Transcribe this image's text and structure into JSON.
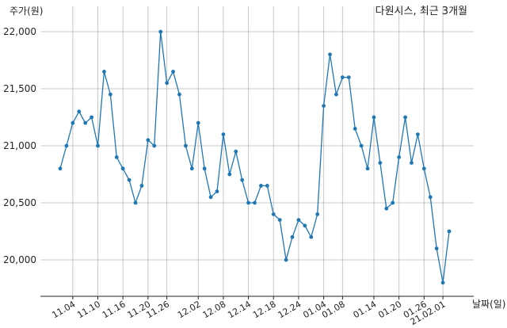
{
  "chart_data": {
    "type": "line",
    "title": "다원시스, 최근 3개월",
    "ylabel": "주가(원)",
    "xlabel": "날짜(일)",
    "ylim": [
      19700,
      22200
    ],
    "yticks": [
      20000,
      20500,
      21000,
      21500,
      22000
    ],
    "yticklabels": [
      "20,000",
      "20,500",
      "21,000",
      "21,500",
      "22,000"
    ],
    "xticklabels": [
      "11.04",
      "11.10",
      "11.16",
      "11.20",
      "11.26",
      "12.02",
      "12.08",
      "12.14",
      "12.18",
      "12.24",
      "01.04",
      "01.08",
      "01.14",
      "01.20",
      "01.26",
      "21.02.01"
    ],
    "xtick_index": [
      2,
      6,
      10,
      14,
      17,
      22,
      26,
      30,
      34,
      38,
      42,
      45,
      50,
      54,
      58,
      61
    ],
    "grid": true,
    "line_color": "#1f77b4",
    "series": [
      {
        "values": [
          20800,
          21000,
          21200,
          21300,
          21200,
          21250,
          21000,
          21650,
          21450,
          20900,
          20800,
          20700,
          20500,
          20650,
          21050,
          21000,
          22000,
          21550,
          21650,
          21450,
          21000,
          20800,
          21200,
          20800,
          20550,
          20600,
          21100,
          20750,
          20950,
          20700,
          20500,
          20500,
          20650,
          20650,
          20400,
          20350,
          20000,
          20200,
          20350,
          20300,
          20200,
          20400,
          21350,
          21800,
          21450,
          21600,
          21600,
          21150,
          21000,
          20800,
          21250,
          20850,
          20450,
          20500,
          20900,
          21250,
          20850,
          21100,
          20800,
          20550,
          20100,
          19800,
          20250
        ]
      }
    ]
  }
}
